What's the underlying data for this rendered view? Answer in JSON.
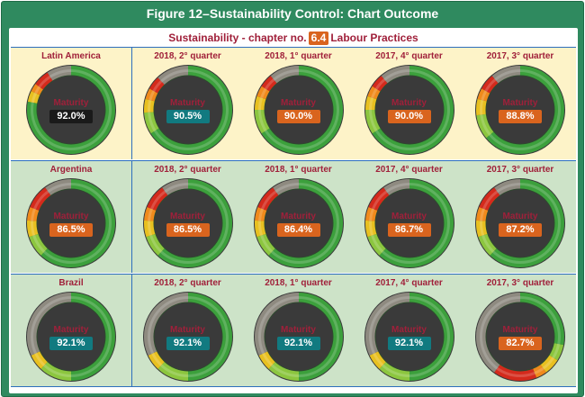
{
  "figure_title": "Figure 12–Sustainability Control: Chart Outcome",
  "subtitle": {
    "prefix": "Sustainability - chapter no.",
    "chapter": "6.4",
    "suffix": "Labour Practices"
  },
  "maturity_label": "Maturity",
  "colors": {
    "title_bar": "#2f8a5f",
    "label_text": "#a0203a",
    "badge_black": "#1a1a1a",
    "badge_teal": "#117a80",
    "badge_orange": "#d9641e",
    "ring_green": "#3ca03c",
    "ring_lightgreen": "#8cc63f",
    "ring_yellow": "#e8c020",
    "ring_orange": "#f08a1c",
    "ring_red": "#d42a1c",
    "ring_gray": "#8e8a80"
  },
  "chart_data": {
    "type": "donut-grid",
    "title": "Figure 12–Sustainability Control: Chart Outcome",
    "subtitle": "Sustainability - chapter no. 6.4 Labour Practices",
    "rows": [
      {
        "region": "Latin America",
        "cells": [
          {
            "label": "Latin America",
            "value": "92.0%",
            "maturity": 92.0,
            "badge": "black",
            "segments": [
              {
                "c": "green",
                "v": 0.78
              },
              {
                "c": "yellow",
                "v": 0.04
              },
              {
                "c": "orange",
                "v": 0.03
              },
              {
                "c": "red",
                "v": 0.06
              },
              {
                "c": "gray",
                "v": 0.09
              }
            ]
          },
          {
            "label": "2018, 2° quarter",
            "value": "90.5%",
            "maturity": 90.5,
            "badge": "teal",
            "segments": [
              {
                "c": "green",
                "v": 0.66
              },
              {
                "c": "lightgreen",
                "v": 0.08
              },
              {
                "c": "yellow",
                "v": 0.05
              },
              {
                "c": "orange",
                "v": 0.04
              },
              {
                "c": "red",
                "v": 0.05
              },
              {
                "c": "gray",
                "v": 0.12
              }
            ]
          },
          {
            "label": "2018, 1° quarter",
            "value": "90.0%",
            "maturity": 90.0,
            "badge": "orange",
            "segments": [
              {
                "c": "green",
                "v": 0.66
              },
              {
                "c": "lightgreen",
                "v": 0.09
              },
              {
                "c": "yellow",
                "v": 0.05
              },
              {
                "c": "orange",
                "v": 0.04
              },
              {
                "c": "red",
                "v": 0.05
              },
              {
                "c": "gray",
                "v": 0.11
              }
            ]
          },
          {
            "label": "2017, 4° quarter",
            "value": "90.0%",
            "maturity": 90.0,
            "badge": "orange",
            "segments": [
              {
                "c": "green",
                "v": 0.66
              },
              {
                "c": "lightgreen",
                "v": 0.09
              },
              {
                "c": "yellow",
                "v": 0.05
              },
              {
                "c": "orange",
                "v": 0.04
              },
              {
                "c": "red",
                "v": 0.05
              },
              {
                "c": "gray",
                "v": 0.11
              }
            ]
          },
          {
            "label": "2017, 3° quarter",
            "value": "88.8%",
            "maturity": 88.8,
            "badge": "orange",
            "segments": [
              {
                "c": "green",
                "v": 0.64
              },
              {
                "c": "lightgreen",
                "v": 0.09
              },
              {
                "c": "yellow",
                "v": 0.06
              },
              {
                "c": "orange",
                "v": 0.04
              },
              {
                "c": "red",
                "v": 0.06
              },
              {
                "c": "gray",
                "v": 0.11
              }
            ]
          }
        ]
      },
      {
        "region": "Argentina",
        "cells": [
          {
            "label": "Argentina",
            "value": "86.5%",
            "maturity": 86.5,
            "badge": "orange",
            "segments": [
              {
                "c": "green",
                "v": 0.62
              },
              {
                "c": "lightgreen",
                "v": 0.08
              },
              {
                "c": "yellow",
                "v": 0.06
              },
              {
                "c": "orange",
                "v": 0.05
              },
              {
                "c": "red",
                "v": 0.09
              },
              {
                "c": "gray",
                "v": 0.1
              }
            ]
          },
          {
            "label": "2018, 2° quarter",
            "value": "86.5%",
            "maturity": 86.5,
            "badge": "orange",
            "segments": [
              {
                "c": "green",
                "v": 0.62
              },
              {
                "c": "lightgreen",
                "v": 0.08
              },
              {
                "c": "yellow",
                "v": 0.06
              },
              {
                "c": "orange",
                "v": 0.05
              },
              {
                "c": "red",
                "v": 0.09
              },
              {
                "c": "gray",
                "v": 0.1
              }
            ]
          },
          {
            "label": "2018, 1° quarter",
            "value": "86.4%",
            "maturity": 86.4,
            "badge": "orange",
            "segments": [
              {
                "c": "green",
                "v": 0.62
              },
              {
                "c": "lightgreen",
                "v": 0.08
              },
              {
                "c": "yellow",
                "v": 0.06
              },
              {
                "c": "orange",
                "v": 0.05
              },
              {
                "c": "red",
                "v": 0.09
              },
              {
                "c": "gray",
                "v": 0.1
              }
            ]
          },
          {
            "label": "2017, 4° quarter",
            "value": "86.7%",
            "maturity": 86.7,
            "badge": "orange",
            "segments": [
              {
                "c": "green",
                "v": 0.62
              },
              {
                "c": "lightgreen",
                "v": 0.08
              },
              {
                "c": "yellow",
                "v": 0.06
              },
              {
                "c": "orange",
                "v": 0.05
              },
              {
                "c": "red",
                "v": 0.09
              },
              {
                "c": "gray",
                "v": 0.1
              }
            ]
          },
          {
            "label": "2017, 3° quarter",
            "value": "87.2%",
            "maturity": 87.2,
            "badge": "orange",
            "segments": [
              {
                "c": "green",
                "v": 0.62
              },
              {
                "c": "lightgreen",
                "v": 0.08
              },
              {
                "c": "yellow",
                "v": 0.06
              },
              {
                "c": "orange",
                "v": 0.05
              },
              {
                "c": "red",
                "v": 0.09
              },
              {
                "c": "gray",
                "v": 0.1
              }
            ]
          }
        ]
      },
      {
        "region": "Brazil",
        "cells": [
          {
            "label": "Brazil",
            "value": "92.1%",
            "maturity": 92.1,
            "badge": "teal",
            "segments": [
              {
                "c": "green",
                "v": 0.5
              },
              {
                "c": "lightgreen",
                "v": 0.12
              },
              {
                "c": "yellow",
                "v": 0.06
              },
              {
                "c": "gray",
                "v": 0.32
              }
            ]
          },
          {
            "label": "2018, 2° quarter",
            "value": "92.1%",
            "maturity": 92.1,
            "badge": "teal",
            "segments": [
              {
                "c": "green",
                "v": 0.5
              },
              {
                "c": "lightgreen",
                "v": 0.12
              },
              {
                "c": "yellow",
                "v": 0.06
              },
              {
                "c": "gray",
                "v": 0.32
              }
            ]
          },
          {
            "label": "2018, 1° quarter",
            "value": "92.1%",
            "maturity": 92.1,
            "badge": "teal",
            "segments": [
              {
                "c": "green",
                "v": 0.5
              },
              {
                "c": "lightgreen",
                "v": 0.12
              },
              {
                "c": "yellow",
                "v": 0.06
              },
              {
                "c": "gray",
                "v": 0.32
              }
            ]
          },
          {
            "label": "2017, 4° quarter",
            "value": "92.1%",
            "maturity": 92.1,
            "badge": "teal",
            "segments": [
              {
                "c": "green",
                "v": 0.5
              },
              {
                "c": "lightgreen",
                "v": 0.12
              },
              {
                "c": "yellow",
                "v": 0.06
              },
              {
                "c": "gray",
                "v": 0.32
              }
            ]
          },
          {
            "label": "2017, 3° quarter",
            "value": "82.7%",
            "maturity": 82.7,
            "badge": "orange",
            "segments": [
              {
                "c": "green",
                "v": 0.28
              },
              {
                "c": "lightgreen",
                "v": 0.06
              },
              {
                "c": "yellow",
                "v": 0.06
              },
              {
                "c": "orange",
                "v": 0.04
              },
              {
                "c": "red",
                "v": 0.16
              },
              {
                "c": "gray",
                "v": 0.4
              }
            ]
          }
        ]
      }
    ]
  }
}
